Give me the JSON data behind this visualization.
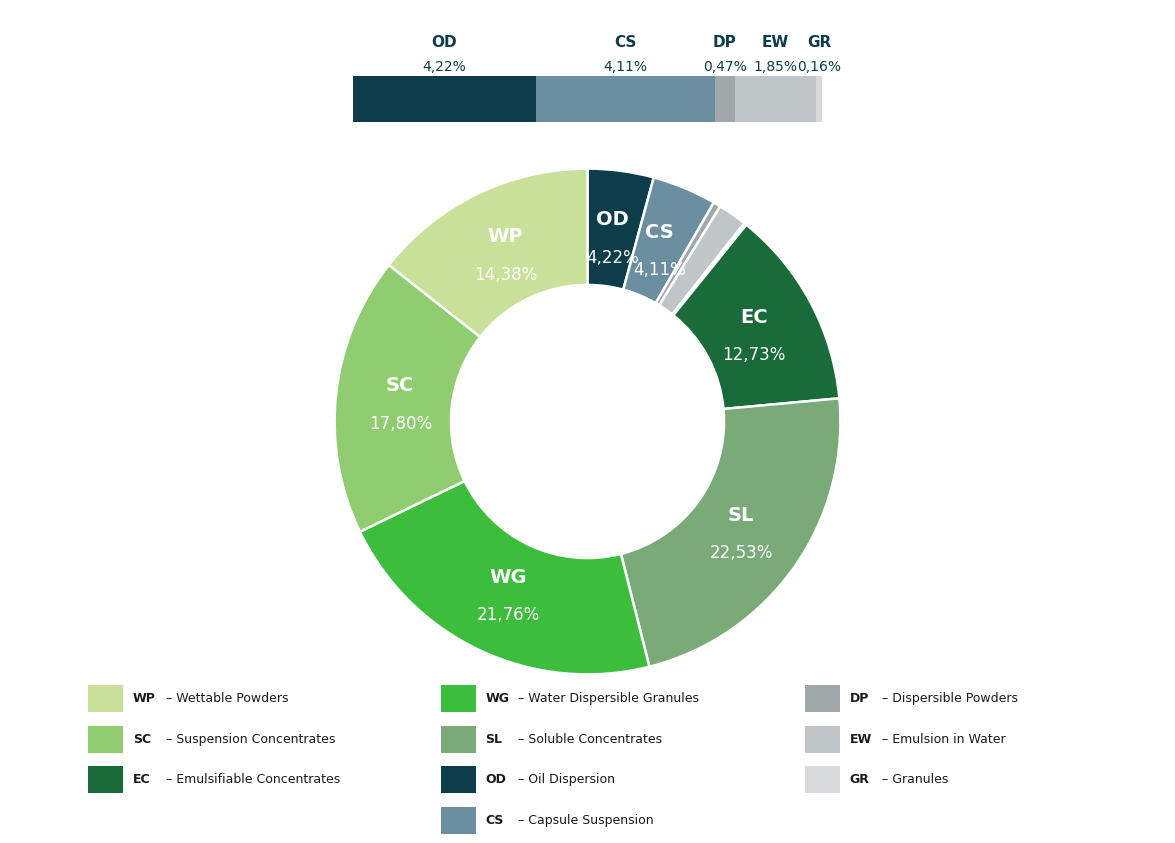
{
  "segments": [
    {
      "label": "OD",
      "name": "Oil Dispersion",
      "value": 4.22,
      "color": "#0d3d4a"
    },
    {
      "label": "CS",
      "name": "Capsule Suspension",
      "value": 4.11,
      "color": "#6b8fa0"
    },
    {
      "label": "DP",
      "name": "Dispersible Powders",
      "value": 0.47,
      "color": "#a0a8aa"
    },
    {
      "label": "EW",
      "name": "Emulsion in Water",
      "value": 1.85,
      "color": "#c0c5c7"
    },
    {
      "label": "GR",
      "name": "Granules",
      "value": 0.16,
      "color": "#d8dadb"
    },
    {
      "label": "EC",
      "name": "Emulsifiable Concentrates",
      "value": 12.73,
      "color": "#1a6b3a"
    },
    {
      "label": "SL",
      "name": "Soluble Concentrates",
      "value": 22.53,
      "color": "#7aaa78"
    },
    {
      "label": "WG",
      "name": "Water Dispersible Granules",
      "value": 21.76,
      "color": "#3cbd3c"
    },
    {
      "label": "SC",
      "name": "Suspension Concentrates",
      "value": 17.8,
      "color": "#90cc70"
    },
    {
      "label": "WP",
      "name": "Wettable Powders",
      "value": 14.38,
      "color": "#c8e09a"
    }
  ],
  "bg_color": "#ffffff",
  "text_color_dark": "#0d3d4a",
  "top_bar_labels": [
    "OD",
    "CS",
    "DP",
    "EW",
    "GR"
  ],
  "top_bar_values": [
    "4,22%",
    "4,11%",
    "0,47%",
    "1,85%",
    "0,16%"
  ],
  "top_bar_colors": [
    "#0d3d4a",
    "#6b8fa0",
    "#a0a8aa",
    "#c0c5c7",
    "#d8dadb"
  ],
  "top_bar_widths": [
    4.22,
    4.11,
    0.47,
    1.85,
    0.16
  ],
  "legend_col1": [
    [
      "WP",
      "Wettable Powders",
      "#c8e09a"
    ],
    [
      "SC",
      "Suspension Concentrates",
      "#90cc70"
    ],
    [
      "EC",
      "Emulsifiable Concentrates",
      "#1a6b3a"
    ]
  ],
  "legend_col2": [
    [
      "WG",
      "Water Dispersible Granules",
      "#3cbd3c"
    ],
    [
      "SL",
      "Soluble Concentrates",
      "#7aaa78"
    ],
    [
      "OD",
      "Oil Dispersion",
      "#0d3d4a"
    ],
    [
      "CS",
      "Capsule Suspension",
      "#6b8fa0"
    ]
  ],
  "legend_col3": [
    [
      "DP",
      "Dispersible Powders",
      "#a0a8aa"
    ],
    [
      "EW",
      "Emulsion in Water",
      "#c0c5c7"
    ],
    [
      "GR",
      "Granules",
      "#d8dadb"
    ]
  ]
}
